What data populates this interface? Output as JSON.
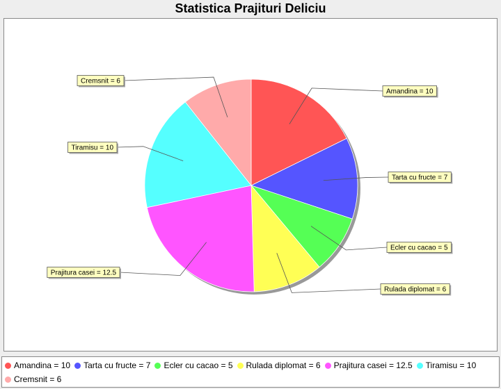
{
  "chart_data": {
    "type": "pie",
    "title": "Statistica Prajituri Deliciu",
    "slices": [
      {
        "label": "Amandina",
        "value": 10,
        "color": "#ff5555",
        "display": "Amandina = 10"
      },
      {
        "label": "Tarta cu fructe",
        "value": 7,
        "color": "#5555ff",
        "display": "Tarta cu fructe = 7"
      },
      {
        "label": "Ecler cu cacao",
        "value": 5,
        "color": "#55ff55",
        "display": "Ecler cu cacao = 5"
      },
      {
        "label": "Rulada diplomat",
        "value": 6,
        "color": "#ffff55",
        "display": "Rulada diplomat = 6"
      },
      {
        "label": "Prajitura casei",
        "value": 12.5,
        "color": "#ff55ff",
        "display": "Prajitura casei = 12.5"
      },
      {
        "label": "Tiramisu",
        "value": 10,
        "color": "#55ffff",
        "display": "Tiramisu = 10"
      },
      {
        "label": "Cremsnit",
        "value": 6,
        "color": "#ffaaaa",
        "display": "Cremsnit = 6"
      }
    ],
    "legend_position": "bottom",
    "label_style": "callout-boxes"
  }
}
